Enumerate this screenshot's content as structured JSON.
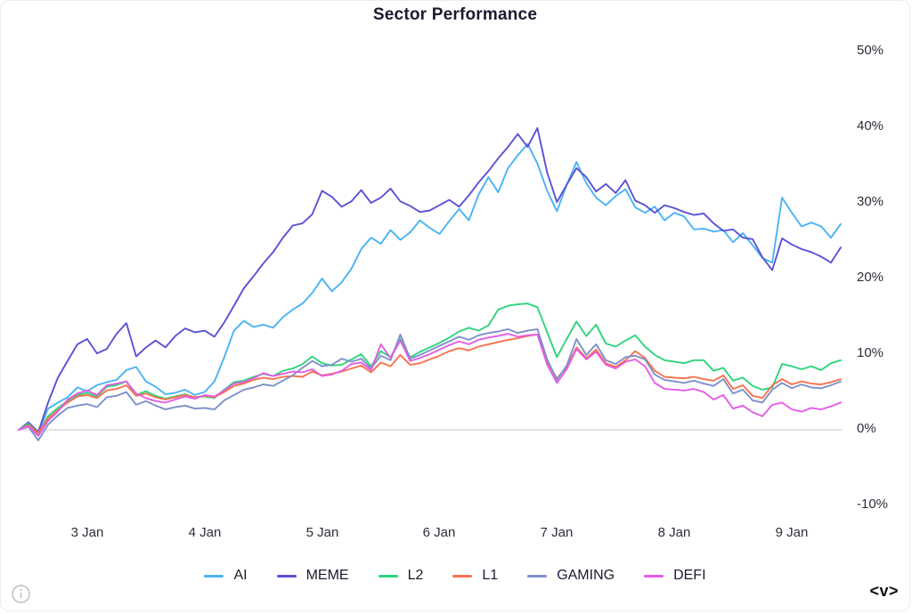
{
  "title": "Sector Performance",
  "footer": {
    "logo": "<v>",
    "info_icon": "info-icon"
  },
  "chart_data": {
    "type": "line",
    "title": "Sector Performance",
    "xlabel": "",
    "ylabel": "",
    "grid": "zero-line-only",
    "legend_position": "bottom",
    "y_axis_side": "right",
    "ylim": [
      -10,
      50
    ],
    "y_ticks": [
      {
        "v": 50,
        "label": "50%"
      },
      {
        "v": 40,
        "label": "40%"
      },
      {
        "v": 30,
        "label": "30%"
      },
      {
        "v": 20,
        "label": "20%"
      },
      {
        "v": 10,
        "label": "10%"
      },
      {
        "v": 0,
        "label": "0%"
      },
      {
        "v": -10,
        "label": "-10%"
      }
    ],
    "x_ticks": [
      {
        "i": 7,
        "label": "3 Jan"
      },
      {
        "i": 19,
        "label": "4 Jan"
      },
      {
        "i": 31,
        "label": "5 Jan"
      },
      {
        "i": 43,
        "label": "6 Jan"
      },
      {
        "i": 55,
        "label": "7 Jan"
      },
      {
        "i": 67,
        "label": "8 Jan"
      },
      {
        "i": 79,
        "label": "9 Jan"
      }
    ],
    "unit": "percent",
    "series": [
      {
        "name": "AI",
        "color": "#4ab3f4",
        "values": [
          0,
          0.6,
          -0.4,
          2.8,
          3.6,
          4.3,
          5.6,
          5.1,
          5.9,
          6.3,
          6.6,
          7.9,
          8.3,
          6.4,
          5.7,
          4.7,
          4.9,
          5.3,
          4.6,
          5,
          6.4,
          9.6,
          13.1,
          14.4,
          13.6,
          13.9,
          13.5,
          14.9,
          15.9,
          16.7,
          18.1,
          20,
          18.3,
          19.5,
          21.3,
          23.9,
          25.4,
          24.6,
          26.4,
          25.1,
          26.1,
          27.7,
          26.7,
          25.9,
          27.6,
          29.2,
          27.7,
          31.1,
          33.4,
          31.4,
          34.6,
          36.3,
          37.8,
          35.2,
          31.6,
          28.9,
          32.4,
          35.4,
          32.6,
          30.7,
          29.7,
          30.9,
          31.8,
          29.4,
          28.7,
          29.5,
          27.7,
          28.7,
          28.2,
          26.5,
          26.6,
          26.2,
          26.4,
          24.8,
          26,
          24.4,
          22.7,
          22.1,
          30.7,
          28.7,
          26.9,
          27.4,
          26.9,
          25.4,
          27.2
        ]
      },
      {
        "name": "MEME",
        "color": "#5a52d5",
        "values": [
          0,
          1,
          -0.3,
          3.6,
          6.9,
          9.1,
          11.3,
          12,
          10.1,
          10.7,
          12.7,
          14.1,
          9.7,
          10.9,
          11.8,
          10.9,
          12.4,
          13.4,
          12.9,
          13.1,
          12.3,
          14.2,
          16.4,
          18.7,
          20.3,
          22,
          23.5,
          25.4,
          27,
          27.3,
          28.5,
          31.6,
          30.8,
          29.5,
          30.2,
          31.7,
          30,
          30.7,
          31.9,
          30.2,
          29.6,
          28.8,
          29,
          29.7,
          30.4,
          29.5,
          31,
          32.7,
          34.2,
          35.9,
          37.4,
          39.1,
          37.4,
          39.9,
          34,
          30.1,
          32.4,
          34.6,
          33.4,
          31.5,
          32.5,
          31.3,
          33,
          30.3,
          29.7,
          28.7,
          29.7,
          29.3,
          28.8,
          28.4,
          28.6,
          27.3,
          26.3,
          26.5,
          25.4,
          25.2,
          22.8,
          21.1,
          25.3,
          24.5,
          23.9,
          23.5,
          22.9,
          22.1,
          24.1
        ]
      },
      {
        "name": "L2",
        "color": "#2ed47c",
        "values": [
          0,
          0.8,
          -0.5,
          1.8,
          2.9,
          3.8,
          4.6,
          4.9,
          4.4,
          5.7,
          5.9,
          6.4,
          4.6,
          5.1,
          4.5,
          4.1,
          4.4,
          4.7,
          4.3,
          4.4,
          4.2,
          5.3,
          6.3,
          6.5,
          7,
          7.4,
          7.1,
          7.8,
          8.1,
          8.7,
          9.7,
          8.8,
          8.5,
          8.6,
          9.3,
          10,
          8.4,
          10.4,
          9.6,
          12,
          9.6,
          10.3,
          10.9,
          11.5,
          12.2,
          13,
          13.5,
          13.1,
          13.8,
          15.9,
          16.4,
          16.6,
          16.7,
          16.2,
          12.9,
          9.6,
          12,
          14.3,
          12.4,
          13.9,
          11.4,
          11,
          11.8,
          12.5,
          11,
          9.9,
          9.2,
          9,
          8.8,
          9.2,
          9.2,
          7.8,
          8.2,
          6.5,
          6.9,
          5.8,
          5.3,
          5.6,
          8.7,
          8.4,
          8,
          8.4,
          7.9,
          8.8,
          9.2
        ]
      },
      {
        "name": "L1",
        "color": "#f9714f",
        "values": [
          0,
          0.6,
          -0.4,
          1.5,
          2.6,
          3.6,
          4.4,
          4.6,
          4.2,
          5.2,
          5.4,
          5.9,
          4.5,
          4.8,
          4.3,
          4,
          4.3,
          4.6,
          4.3,
          4.5,
          4.3,
          5,
          5.8,
          6.1,
          6.6,
          6.9,
          6.7,
          7,
          7.1,
          7,
          7.7,
          7.2,
          7.4,
          7.7,
          8.1,
          8.5,
          7.6,
          8.9,
          8.4,
          9.9,
          8.6,
          8.8,
          9.3,
          9.8,
          10.4,
          10.8,
          10.5,
          11,
          11.3,
          11.6,
          11.9,
          12.1,
          12.4,
          12.6,
          9,
          6.8,
          8.3,
          10.9,
          9.5,
          10.6,
          8.8,
          8.3,
          9.2,
          10.4,
          9.5,
          7.8,
          7,
          6.9,
          6.8,
          7,
          6.7,
          6.5,
          7.2,
          5.4,
          5.9,
          4.5,
          4.2,
          5.9,
          6.7,
          6,
          6.4,
          6.1,
          6,
          6.3,
          6.7
        ]
      },
      {
        "name": "GAMING",
        "color": "#7d90ca",
        "values": [
          0,
          0.4,
          -1.4,
          0.7,
          1.9,
          2.9,
          3.2,
          3.4,
          3,
          4.3,
          4.5,
          5,
          3.3,
          3.8,
          3.2,
          2.7,
          3,
          3.2,
          2.8,
          2.9,
          2.7,
          3.9,
          4.6,
          5.3,
          5.6,
          6,
          5.8,
          6.5,
          7.2,
          8.2,
          9.1,
          8.4,
          8.6,
          9.4,
          9,
          9.4,
          8.1,
          9.8,
          9.2,
          12.6,
          9.4,
          9.9,
          10.5,
          11.1,
          11.7,
          12.3,
          11.9,
          12.5,
          12.8,
          13,
          13.3,
          12.8,
          13.1,
          13.3,
          9.3,
          6.6,
          8.5,
          12,
          9.9,
          11.3,
          9.2,
          8.7,
          9.6,
          9.8,
          9.3,
          7.3,
          6.6,
          6.4,
          6.2,
          6.5,
          6.1,
          5.8,
          6.7,
          4.8,
          5.3,
          3.9,
          3.6,
          5.3,
          6.2,
          5.5,
          6,
          5.6,
          5.5,
          5.9,
          6.4
        ]
      },
      {
        "name": "DEFI",
        "color": "#e45ce5",
        "values": [
          0,
          0.5,
          -0.8,
          1.2,
          2.4,
          4,
          4.8,
          5.2,
          4.6,
          5.9,
          6.1,
          6.4,
          4.8,
          4.2,
          3.8,
          3.6,
          4,
          4.4,
          4.1,
          4.6,
          4.4,
          5.2,
          6.1,
          6.3,
          6.8,
          7.5,
          7.1,
          7.4,
          7.7,
          7.6,
          8,
          7.1,
          7.3,
          7.8,
          8.7,
          8.9,
          7.9,
          11.3,
          9.5,
          11.8,
          9.1,
          9.5,
          10,
          10.6,
          11.2,
          11.7,
          11.3,
          11.9,
          12.2,
          12.4,
          12.7,
          12.3,
          12.5,
          12.6,
          8.6,
          6.2,
          8,
          10.7,
          9.3,
          10.3,
          8.6,
          8.1,
          9,
          9.3,
          8.4,
          6.2,
          5.4,
          5.3,
          5.2,
          5.4,
          5,
          4,
          4.6,
          2.8,
          3.2,
          2.3,
          1.8,
          3.3,
          3.6,
          2.7,
          2.4,
          2.9,
          2.7,
          3.1,
          3.6
        ]
      }
    ]
  }
}
